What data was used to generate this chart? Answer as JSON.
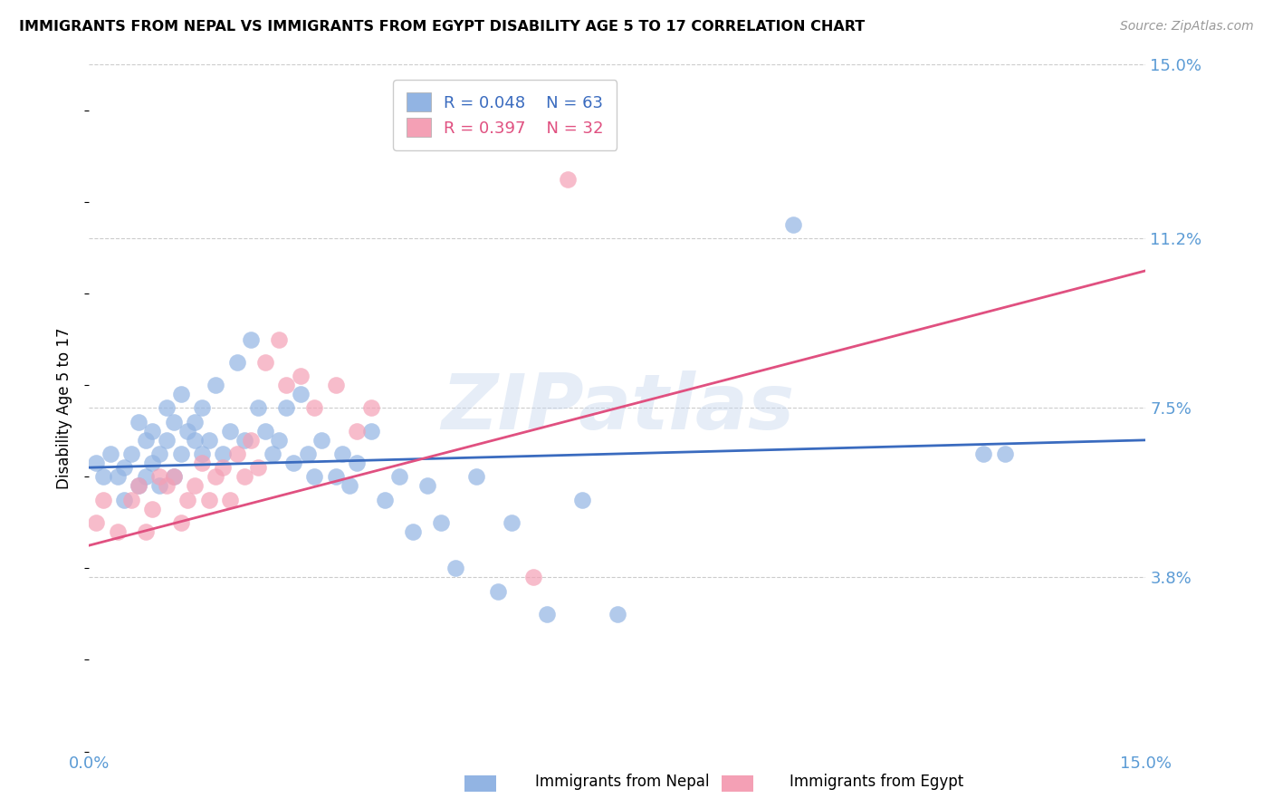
{
  "title": "IMMIGRANTS FROM NEPAL VS IMMIGRANTS FROM EGYPT DISABILITY AGE 5 TO 17 CORRELATION CHART",
  "source": "Source: ZipAtlas.com",
  "ylabel": "Disability Age 5 to 17",
  "xlim": [
    0.0,
    0.15
  ],
  "ylim": [
    0.0,
    0.15
  ],
  "ytick_labels_right": [
    "15.0%",
    "11.2%",
    "7.5%",
    "3.8%"
  ],
  "ytick_vals_right": [
    0.15,
    0.112,
    0.075,
    0.038
  ],
  "nepal_R": "0.048",
  "nepal_N": "63",
  "egypt_R": "0.397",
  "egypt_N": "32",
  "nepal_color": "#92b4e3",
  "egypt_color": "#f4a0b5",
  "nepal_line_color": "#3a6bbf",
  "egypt_line_color": "#e05080",
  "watermark": "ZIPatlas",
  "nepal_points_x": [
    0.001,
    0.002,
    0.003,
    0.004,
    0.005,
    0.005,
    0.006,
    0.007,
    0.007,
    0.008,
    0.008,
    0.009,
    0.009,
    0.01,
    0.01,
    0.011,
    0.011,
    0.012,
    0.012,
    0.013,
    0.013,
    0.014,
    0.015,
    0.015,
    0.016,
    0.016,
    0.017,
    0.018,
    0.019,
    0.02,
    0.021,
    0.022,
    0.023,
    0.024,
    0.025,
    0.026,
    0.027,
    0.028,
    0.029,
    0.03,
    0.031,
    0.032,
    0.033,
    0.035,
    0.036,
    0.037,
    0.038,
    0.04,
    0.042,
    0.044,
    0.046,
    0.048,
    0.05,
    0.052,
    0.055,
    0.058,
    0.06,
    0.065,
    0.07,
    0.075,
    0.1,
    0.127,
    0.13
  ],
  "nepal_points_y": [
    0.063,
    0.06,
    0.065,
    0.06,
    0.055,
    0.062,
    0.065,
    0.058,
    0.072,
    0.068,
    0.06,
    0.07,
    0.063,
    0.065,
    0.058,
    0.075,
    0.068,
    0.072,
    0.06,
    0.078,
    0.065,
    0.07,
    0.068,
    0.072,
    0.065,
    0.075,
    0.068,
    0.08,
    0.065,
    0.07,
    0.085,
    0.068,
    0.09,
    0.075,
    0.07,
    0.065,
    0.068,
    0.075,
    0.063,
    0.078,
    0.065,
    0.06,
    0.068,
    0.06,
    0.065,
    0.058,
    0.063,
    0.07,
    0.055,
    0.06,
    0.048,
    0.058,
    0.05,
    0.04,
    0.06,
    0.035,
    0.05,
    0.03,
    0.055,
    0.03,
    0.115,
    0.065,
    0.065
  ],
  "egypt_points_x": [
    0.001,
    0.002,
    0.004,
    0.006,
    0.007,
    0.008,
    0.009,
    0.01,
    0.011,
    0.012,
    0.013,
    0.014,
    0.015,
    0.016,
    0.017,
    0.018,
    0.019,
    0.02,
    0.021,
    0.022,
    0.023,
    0.024,
    0.025,
    0.027,
    0.028,
    0.03,
    0.032,
    0.035,
    0.038,
    0.04,
    0.063,
    0.068
  ],
  "egypt_points_y": [
    0.05,
    0.055,
    0.048,
    0.055,
    0.058,
    0.048,
    0.053,
    0.06,
    0.058,
    0.06,
    0.05,
    0.055,
    0.058,
    0.063,
    0.055,
    0.06,
    0.062,
    0.055,
    0.065,
    0.06,
    0.068,
    0.062,
    0.085,
    0.09,
    0.08,
    0.082,
    0.075,
    0.08,
    0.07,
    0.075,
    0.038,
    0.125
  ]
}
